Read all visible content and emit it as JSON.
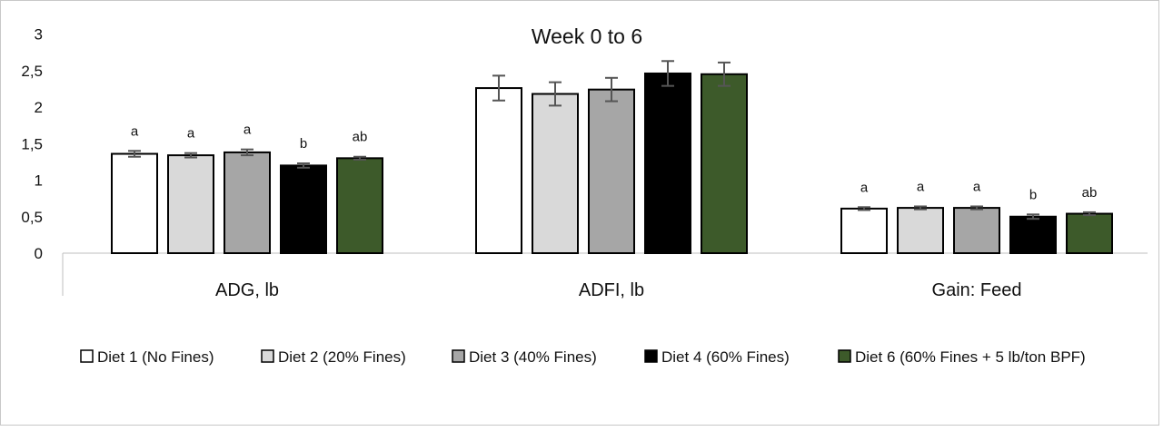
{
  "chart_data": {
    "type": "bar",
    "title": "Week 0 to 6",
    "xlabel": "",
    "ylabel": "",
    "ylim": [
      0,
      3
    ],
    "yticks": [
      "0",
      "0,5",
      "1",
      "1,5",
      "2",
      "2,5",
      "3"
    ],
    "grid": false,
    "legend_position": "bottom",
    "categories": [
      "ADG, lb",
      "ADFI, lb",
      "Gain: Feed"
    ],
    "series": [
      {
        "name": "Diet 1 (No Fines)",
        "color": "#ffffff",
        "values": [
          1.36,
          2.26,
          0.61
        ],
        "errors": [
          0.04,
          0.17,
          0.02
        ],
        "labels": [
          "a",
          "",
          "a"
        ]
      },
      {
        "name": "Diet 2 (20% Fines)",
        "color": "#d9d9d9",
        "values": [
          1.34,
          2.18,
          0.62
        ],
        "errors": [
          0.03,
          0.16,
          0.02
        ],
        "labels": [
          "a",
          "",
          "a"
        ]
      },
      {
        "name": "Diet 3 (40% Fines)",
        "color": "#a6a6a6",
        "values": [
          1.38,
          2.24,
          0.62
        ],
        "errors": [
          0.04,
          0.16,
          0.02
        ],
        "labels": [
          "a",
          "",
          "a"
        ]
      },
      {
        "name": "Diet 4 (60% Fines)",
        "color": "#000000",
        "values": [
          1.2,
          2.46,
          0.5
        ],
        "errors": [
          0.03,
          0.17,
          0.03
        ],
        "labels": [
          "b",
          "",
          "b"
        ]
      },
      {
        "name": "Diet 6 (60% Fines + 5 lb/ton BPF)",
        "color": "#3d5a2a",
        "values": [
          1.3,
          2.45,
          0.54
        ],
        "errors": [
          0.02,
          0.16,
          0.02
        ],
        "labels": [
          "ab",
          "",
          "ab"
        ]
      }
    ]
  }
}
